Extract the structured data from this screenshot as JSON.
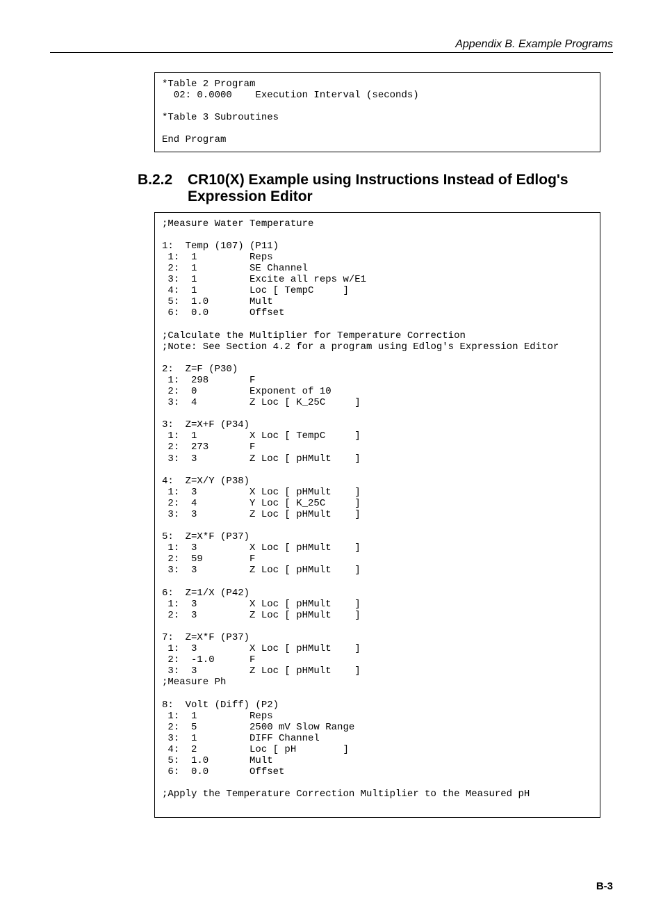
{
  "header": {
    "text": "Appendix B.  Example Programs"
  },
  "codebox1": {
    "lines": [
      "*Table 2 Program",
      "  02: 0.0000    Execution Interval (seconds)",
      "",
      "*Table 3 Subroutines",
      "",
      "End Program"
    ]
  },
  "section": {
    "number": "B.2.2",
    "title": "CR10(X) Example using Instructions Instead of Edlog's Expression Editor"
  },
  "codebox2": {
    "lines": [
      ";Measure Water Temperature",
      "",
      "1:  Temp (107) (P11)",
      " 1:  1         Reps",
      " 2:  1         SE Channel",
      " 3:  1         Excite all reps w/E1",
      " 4:  1         Loc [ TempC     ]",
      " 5:  1.0       Mult",
      " 6:  0.0       Offset",
      "",
      ";Calculate the Multiplier for Temperature Correction",
      ";Note: See Section 4.2 for a program using Edlog's Expression Editor",
      "",
      "2:  Z=F (P30)",
      " 1:  298       F",
      " 2:  0         Exponent of 10",
      " 3:  4         Z Loc [ K_25C     ]",
      "",
      "3:  Z=X+F (P34)",
      " 1:  1         X Loc [ TempC     ]",
      " 2:  273       F",
      " 3:  3         Z Loc [ pHMult    ]",
      "",
      "4:  Z=X/Y (P38)",
      " 1:  3         X Loc [ pHMult    ]",
      " 2:  4         Y Loc [ K_25C     ]",
      " 3:  3         Z Loc [ pHMult    ]",
      "",
      "5:  Z=X*F (P37)",
      " 1:  3         X Loc [ pHMult    ]",
      " 2:  59        F",
      " 3:  3         Z Loc [ pHMult    ]",
      "",
      "6:  Z=1/X (P42)",
      " 1:  3         X Loc [ pHMult    ]",
      " 2:  3         Z Loc [ pHMult    ]",
      "",
      "7:  Z=X*F (P37)",
      " 1:  3         X Loc [ pHMult    ]",
      " 2:  -1.0      F",
      " 3:  3         Z Loc [ pHMult    ]",
      ";Measure Ph",
      "",
      "8:  Volt (Diff) (P2)",
      " 1:  1         Reps",
      " 2:  5         2500 mV Slow Range",
      " 3:  1         DIFF Channel",
      " 4:  2         Loc [ pH        ]",
      " 5:  1.0       Mult",
      " 6:  0.0       Offset",
      "",
      ";Apply the Temperature Correction Multiplier to the Measured pH",
      ""
    ]
  },
  "footer": {
    "text": "B-3"
  }
}
